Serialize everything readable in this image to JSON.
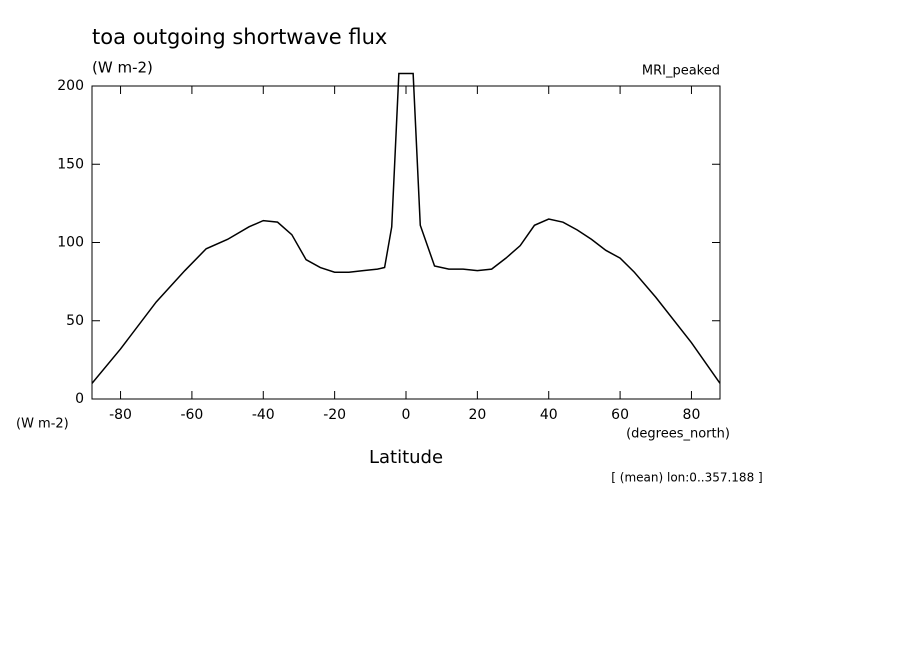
{
  "chart_data": {
    "type": "line",
    "title": "toa outgoing shortwave flux",
    "units_top": "(W m-2)",
    "dataset": "MRI_peaked",
    "y_units": "(W m-2)",
    "x_units": "(degrees_north)",
    "x_label": "Latitude",
    "note": "[ (mean) lon:0..357.188 ]",
    "x": [
      -88,
      -80,
      -70,
      -62,
      -56,
      -50,
      -44,
      -40,
      -36,
      -32,
      -28,
      -24,
      -20,
      -16,
      -12,
      -8,
      -6,
      -4,
      -2,
      2,
      4,
      8,
      12,
      16,
      20,
      24,
      28,
      32,
      36,
      40,
      44,
      48,
      52,
      56,
      60,
      64,
      70,
      80,
      88
    ],
    "series": [
      {
        "name": "MRI_peaked",
        "color": "#000000",
        "values": [
          10,
          32,
          62,
          82,
          96,
          102,
          110,
          114,
          113,
          105,
          89,
          84,
          81,
          81,
          82,
          83,
          84,
          110,
          208,
          208,
          111,
          85,
          83,
          83,
          82,
          83,
          90,
          98,
          111,
          115,
          113,
          108,
          102,
          95,
          90,
          81,
          65,
          36,
          10
        ]
      }
    ],
    "xlim": [
      -88,
      88
    ],
    "ylim": [
      0,
      200
    ],
    "xticks": [
      -80,
      -60,
      -40,
      -20,
      0,
      20,
      40,
      60,
      80
    ],
    "yticks": [
      0,
      50,
      100,
      150,
      200
    ]
  }
}
